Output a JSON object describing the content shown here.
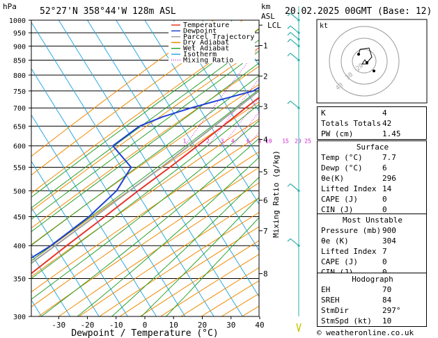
{
  "header": {
    "location": "52°27'N  358°44'W  128m  ASL",
    "datetime": "20.02.2025  00GMT  (Base: 12)",
    "hpa_unit": "hPa",
    "km_unit_1": "km",
    "km_unit_2": "ASL"
  },
  "legend": [
    {
      "label": "Temperature",
      "color": "#e8332b",
      "style": "solid"
    },
    {
      "label": "Dewpoint",
      "color": "#1f3fd6",
      "style": "solid"
    },
    {
      "label": "Parcel Trajectory",
      "color": "#a0a0a0",
      "style": "solid"
    },
    {
      "label": "Dry Adiabat",
      "color": "#f08a00",
      "style": "solid"
    },
    {
      "label": "Wet Adiabat",
      "color": "#2ca02c",
      "style": "solid"
    },
    {
      "label": "Isotherm",
      "color": "#2aa8e0",
      "style": "solid"
    },
    {
      "label": "Mixing Ratio",
      "color": "#d01fd0",
      "style": "dotted"
    }
  ],
  "chart_data": {
    "type": "skew-t",
    "xlabel": "Dewpoint / Temperature (°C)",
    "ylabel_right": "Mixing Ratio (g/kg)",
    "pressure_levels": [
      300,
      350,
      400,
      450,
      500,
      550,
      600,
      650,
      700,
      750,
      800,
      850,
      900,
      950,
      1000
    ],
    "pressure_range": [
      1000,
      300
    ],
    "temp_ticks": [
      -30,
      -20,
      -10,
      0,
      10,
      20,
      30,
      40
    ],
    "height_km": [
      {
        "km": "8",
        "p": 357
      },
      {
        "km": "7",
        "p": 425
      },
      {
        "km": "6",
        "p": 481
      },
      {
        "km": "5",
        "p": 540
      },
      {
        "km": "4",
        "p": 616
      },
      {
        "km": "3",
        "p": 704
      },
      {
        "km": "2",
        "p": 797
      },
      {
        "km": "1",
        "p": 902
      },
      {
        "km": "LCL",
        "p": 980
      }
    ],
    "mixing_ratio_labels": [
      "1",
      "2",
      "3",
      "4",
      "6",
      "8",
      "10",
      "15",
      "20",
      "25"
    ],
    "temperature": [
      {
        "p": 1000,
        "t": 7.7
      },
      {
        "p": 975,
        "t": 7.0
      },
      {
        "p": 950,
        "t": 6.0
      },
      {
        "p": 925,
        "t": 5.0
      },
      {
        "p": 900,
        "t": 4.0
      },
      {
        "p": 875,
        "t": 2.8
      },
      {
        "p": 850,
        "t": 1.5
      },
      {
        "p": 825,
        "t": 0.5
      },
      {
        "p": 800,
        "t": -1.0
      },
      {
        "p": 775,
        "t": -3.5
      },
      {
        "p": 750,
        "t": -6.0
      },
      {
        "p": 725,
        "t": -8.0
      },
      {
        "p": 700,
        "t": -10.0
      },
      {
        "p": 650,
        "t": -14.0
      },
      {
        "p": 600,
        "t": -18.5
      },
      {
        "p": 550,
        "t": -23.5
      },
      {
        "p": 500,
        "t": -29.5
      },
      {
        "p": 450,
        "t": -35.5
      },
      {
        "p": 400,
        "t": -42.5
      },
      {
        "p": 350,
        "t": -50.0
      },
      {
        "p": 300,
        "t": -57.0
      }
    ],
    "dewpoint": [
      {
        "p": 1000,
        "t": 6.0
      },
      {
        "p": 975,
        "t": 5.0
      },
      {
        "p": 950,
        "t": 4.5
      },
      {
        "p": 925,
        "t": 3.5
      },
      {
        "p": 900,
        "t": 2.0
      },
      {
        "p": 850,
        "t": -1.0
      },
      {
        "p": 800,
        "t": -5.0
      },
      {
        "p": 750,
        "t": -11.0
      },
      {
        "p": 725,
        "t": -20.0
      },
      {
        "p": 700,
        "t": -29.0
      },
      {
        "p": 675,
        "t": -37.0
      },
      {
        "p": 650,
        "t": -43.0
      },
      {
        "p": 600,
        "t": -48.0
      },
      {
        "p": 550,
        "t": -37.0
      },
      {
        "p": 500,
        "t": -37.0
      },
      {
        "p": 450,
        "t": -41.0
      },
      {
        "p": 400,
        "t": -48.0
      },
      {
        "p": 350,
        "t": -59.0
      },
      {
        "p": 300,
        "t": -62.0
      }
    ],
    "parcel": [
      {
        "p": 1000,
        "t": 7.7
      },
      {
        "p": 975,
        "t": 6.0
      },
      {
        "p": 950,
        "t": 4.0
      },
      {
        "p": 900,
        "t": 1.0
      },
      {
        "p": 850,
        "t": -2.0
      },
      {
        "p": 800,
        "t": -5.2
      },
      {
        "p": 750,
        "t": -9.0
      },
      {
        "p": 700,
        "t": -12.8
      },
      {
        "p": 650,
        "t": -17.0
      },
      {
        "p": 600,
        "t": -21.5
      },
      {
        "p": 550,
        "t": -26.5
      },
      {
        "p": 500,
        "t": -32.5
      },
      {
        "p": 450,
        "t": -39.0
      },
      {
        "p": 400,
        "t": -46.5
      },
      {
        "p": 350,
        "t": -55.0
      },
      {
        "p": 300,
        "t": -63.0
      }
    ],
    "wind_barb_levels": [
      1000,
      950,
      925,
      900,
      850,
      700,
      500,
      400
    ]
  },
  "hodograph": {
    "unit": "kt",
    "ring_labels": [
      "40",
      "30",
      "20"
    ]
  },
  "indices": [
    {
      "label": "K",
      "value": "4"
    },
    {
      "label": "Totals Totals",
      "value": "42"
    },
    {
      "label": "PW (cm)",
      "value": "1.45"
    }
  ],
  "surface": {
    "title": "Surface",
    "rows": [
      {
        "label": "Temp (°C)",
        "value": "7.7"
      },
      {
        "label": "Dewp (°C)",
        "value": "6"
      },
      {
        "label": "θe(K)",
        "value": "296"
      },
      {
        "label": "Lifted Index",
        "value": "14"
      },
      {
        "label": "CAPE (J)",
        "value": "0"
      },
      {
        "label": "CIN (J)",
        "value": "0"
      }
    ]
  },
  "most_unstable": {
    "title": "Most Unstable",
    "rows": [
      {
        "label": "Pressure (mb)",
        "value": "900"
      },
      {
        "label": "θe (K)",
        "value": "304"
      },
      {
        "label": "Lifted Index",
        "value": "7"
      },
      {
        "label": "CAPE (J)",
        "value": "0"
      },
      {
        "label": "CIN (J)",
        "value": "0"
      }
    ]
  },
  "hodograph_table": {
    "title": "Hodograph",
    "rows": [
      {
        "label": "EH",
        "value": "70"
      },
      {
        "label": "SREH",
        "value": "84"
      },
      {
        "label": "StmDir",
        "value": "297°"
      },
      {
        "label": "StmSpd (kt)",
        "value": "10"
      }
    ]
  },
  "footer": {
    "copyright": "© weatheronline.co.uk"
  },
  "colors": {
    "temperature": "#e8332b",
    "dewpoint": "#1f3fd6",
    "parcel": "#a0a0a0",
    "dry_adiabat": "#f08a00",
    "wet_adiabat": "#2ca02c",
    "isotherm": "#2aa8e0",
    "mixing_ratio": "#d01fd0",
    "barb": "#2ab0a8"
  }
}
